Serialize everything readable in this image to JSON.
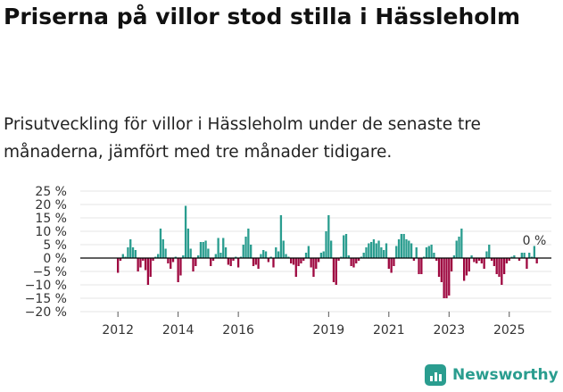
{
  "title": "Priserna på villor stod stilla i Hässleholm",
  "subtitle": "Prisutveckling för villor i Hässleholm under de senaste tre månaderna, jämfört med tre månader tidigare.",
  "brand": {
    "name": "Newsworthy",
    "icon": "bar-chart-icon",
    "color": "#2a9d8f"
  },
  "colors": {
    "positive": "#2a9d8f",
    "negative": "#9e0840",
    "grid": "#e5e5e5",
    "axis": "#000000"
  },
  "chart_data": {
    "type": "bar",
    "title": "Priserna på villor stod stilla i Hässleholm",
    "xlabel": "",
    "ylabel": "",
    "ylim": [
      -20,
      25
    ],
    "xlim": [
      2010.75,
      2026.4
    ],
    "yticks": [
      25,
      20,
      15,
      10,
      5,
      0,
      -5,
      -10,
      -15,
      -20
    ],
    "ytick_labels": [
      "25 %",
      "20 %",
      "15 %",
      "10 %",
      "5 %",
      "0 %",
      "−5 %",
      "−10 %",
      "−15 %",
      "−20 %"
    ],
    "xticks": [
      2012,
      2014,
      2016,
      2019,
      2021,
      2023,
      2025
    ],
    "xtick_labels": [
      "2012",
      "2014",
      "2016",
      "2019",
      "2021",
      "2023",
      "2025"
    ],
    "grid": true,
    "annotation": {
      "text": "0 %",
      "x": 2025.6,
      "y": 0
    },
    "start": 2012.0,
    "step": 0.08333,
    "values": [
      -5.5,
      -1,
      1.5,
      0.5,
      4,
      7,
      4,
      3,
      -5,
      -3.5,
      -1,
      -4.5,
      -10,
      -7,
      -1,
      0.5,
      1.5,
      11,
      7,
      3.5,
      -2,
      -4,
      -1.5,
      0.5,
      -9,
      -6.5,
      1,
      19.5,
      11,
      3.5,
      -5,
      -3,
      1,
      6,
      6,
      6.5,
      3.5,
      -3,
      -1,
      1.5,
      7.5,
      2,
      7.5,
      4,
      -2.5,
      -3,
      -1,
      0.5,
      -3.5,
      0.5,
      5,
      8,
      11,
      5,
      -3,
      -2.5,
      -4,
      1.5,
      3,
      2.5,
      -1.5,
      0.5,
      -3.5,
      4,
      2.5,
      16,
      6.5,
      1.5,
      0.5,
      -2,
      -2.5,
      -7,
      -3,
      -2,
      -1,
      2,
      4.5,
      -3.5,
      -7,
      -4,
      -1.5,
      2,
      2.5,
      10,
      16,
      6.5,
      -9,
      -10,
      -1,
      0.5,
      8.5,
      9,
      1,
      -3,
      -3.5,
      -2,
      -1,
      0.5,
      2,
      4,
      5.5,
      6,
      7,
      5.5,
      6.5,
      4,
      3,
      5.5,
      -4,
      -5.5,
      -3,
      4.5,
      7,
      9,
      9,
      7,
      6.5,
      5.5,
      -1,
      4,
      -6,
      -6,
      0.5,
      4,
      4.5,
      5,
      2,
      -1,
      -7,
      -9,
      -15,
      -15,
      -14,
      -5,
      1,
      6.5,
      8,
      11,
      -8.5,
      -6.5,
      -5,
      1,
      -1.5,
      -2,
      -1,
      -2,
      -4,
      2.5,
      5,
      -1,
      -3,
      -6,
      -7,
      -10,
      -6,
      -2,
      -1,
      0.5,
      1,
      0,
      -1,
      2,
      2,
      -4,
      2,
      0.5,
      4.5,
      -2
    ]
  }
}
